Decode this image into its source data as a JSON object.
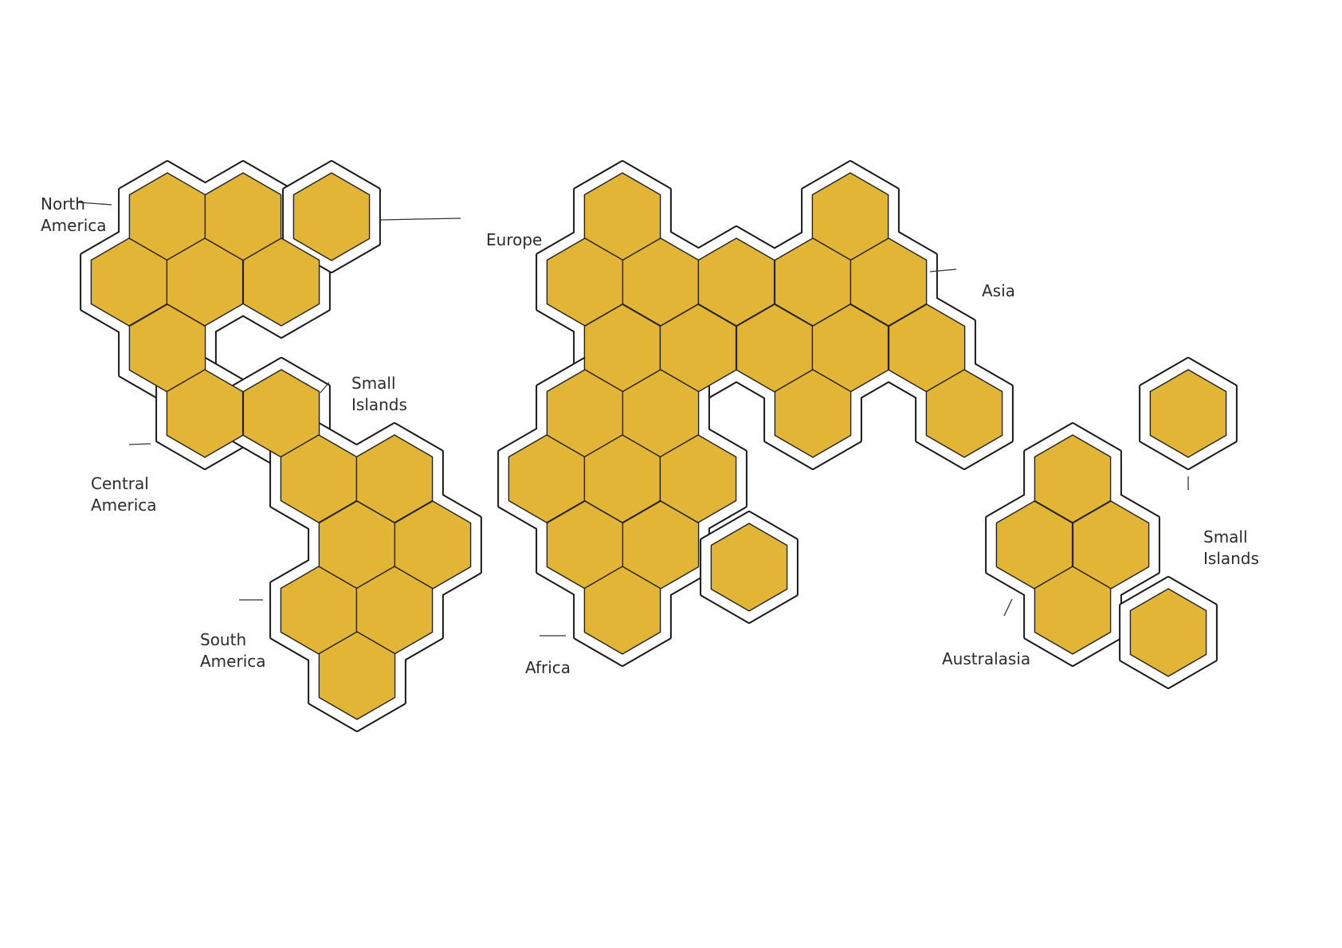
{
  "diagram": {
    "hex_fill": "#E3B536",
    "hex_stroke": "#222222",
    "outline_color": "#1a1a1a",
    "regions": [
      {
        "id": "north-america",
        "lines": [
          "North",
          "America"
        ],
        "hex_count": 6
      },
      {
        "id": "europe",
        "lines": [
          "Europe"
        ],
        "hex_count": 1
      },
      {
        "id": "small-islands-west",
        "lines": [
          "Small",
          "Islands"
        ],
        "hex_count": 1
      },
      {
        "id": "central-america",
        "lines": [
          "Central",
          "America"
        ],
        "hex_count": 1
      },
      {
        "id": "south-america",
        "lines": [
          "South",
          "America"
        ],
        "hex_count": 8
      },
      {
        "id": "asia",
        "lines": [
          "Asia"
        ],
        "hex_count": 20
      },
      {
        "id": "africa",
        "lines": [
          "Africa"
        ],
        "hex_count": 8
      },
      {
        "id": "small-islands-east",
        "lines": [
          "Small",
          "Islands"
        ],
        "hex_count": 1
      },
      {
        "id": "australasia",
        "lines": [
          "Australasia"
        ],
        "hex_count": 5
      }
    ]
  }
}
